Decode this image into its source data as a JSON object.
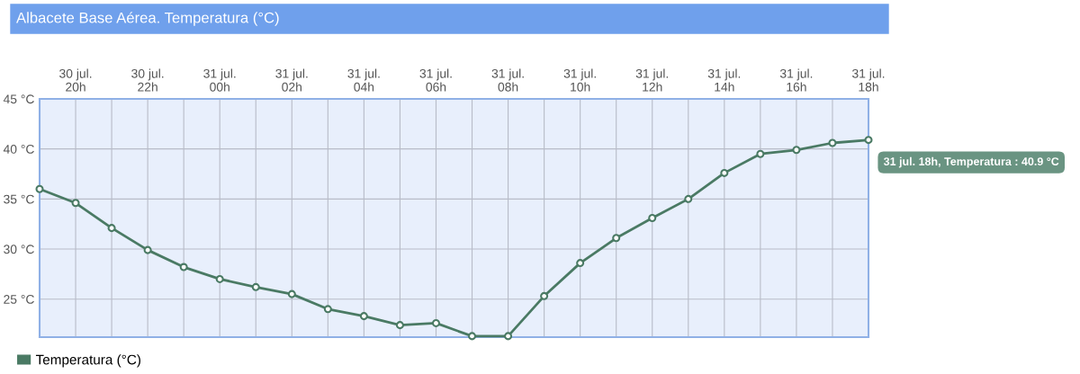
{
  "chart_data": {
    "type": "line",
    "title": "Albacete Base Aérea. Temperatura (°C)",
    "categories": [
      null,
      "30 jul.\n20h",
      null,
      "30 jul.\n22h",
      null,
      "31 jul.\n00h",
      null,
      "31 jul.\n02h",
      null,
      "31 jul.\n04h",
      null,
      "31 jul.\n06h",
      null,
      "31 jul.\n08h",
      null,
      "31 jul.\n10h",
      null,
      "31 jul.\n12h",
      null,
      "31 jul.\n14h",
      null,
      "31 jul.\n16h",
      null,
      "31 jul.\n18h"
    ],
    "series": [
      {
        "name": "Temperatura (°C)",
        "color": "#4a7a64",
        "values": [
          36.0,
          34.6,
          32.1,
          29.9,
          28.2,
          27.0,
          26.2,
          25.5,
          24.0,
          23.3,
          22.4,
          22.6,
          21.3,
          21.3,
          25.3,
          28.6,
          31.1,
          33.1,
          35.0,
          37.6,
          39.5,
          39.9,
          40.6,
          40.9
        ]
      }
    ],
    "ylim": [
      21.2,
      45
    ],
    "yticks": [
      {
        "value": 25,
        "label": "25 °C"
      },
      {
        "value": 30,
        "label": "30 °C"
      },
      {
        "value": 35,
        "label": "35 °C"
      },
      {
        "value": 40,
        "label": "40 °C"
      },
      {
        "value": 45,
        "label": "45 °C"
      }
    ],
    "grid": true,
    "legend": "bottom left",
    "marker": "circle",
    "line_style": "solid",
    "annotations": [
      {
        "text": "31 jul. 18h, Temperatura : 40.9 °C",
        "x": "31 jul.\n18h",
        "y": 40.9
      }
    ]
  }
}
